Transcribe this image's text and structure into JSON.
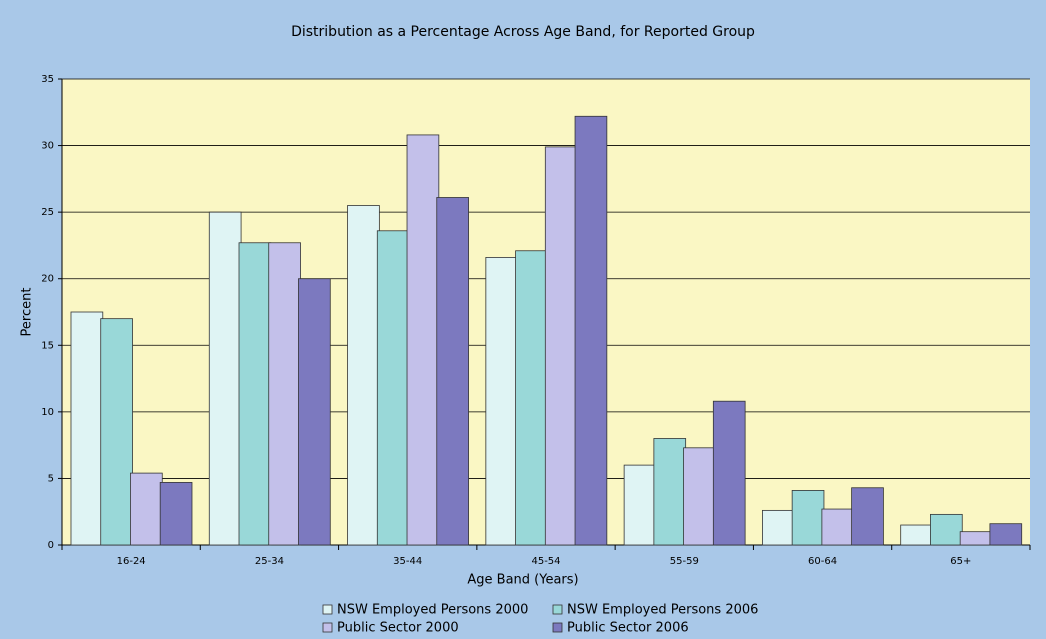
{
  "chart_data": {
    "type": "bar",
    "title": "Distribution as a Percentage Across Age Band, for Reported Group",
    "xlabel": "Age Band (Years)",
    "ylabel": "Percent",
    "categories": [
      "16-24",
      "25-34",
      "35-44",
      "45-54",
      "55-59",
      "60-64",
      "65+"
    ],
    "series": [
      {
        "name": "NSW Employed Persons 2000",
        "color": "#dff4f4",
        "values": [
          17.5,
          25.0,
          25.5,
          21.6,
          6.0,
          2.6,
          1.5
        ]
      },
      {
        "name": "NSW Employed Persons 2006",
        "color": "#99d8d8",
        "values": [
          17.0,
          22.7,
          23.6,
          22.1,
          8.0,
          4.1,
          2.3
        ]
      },
      {
        "name": "Public Sector 2000",
        "color": "#c3c0ea",
        "values": [
          5.4,
          22.7,
          30.8,
          29.9,
          7.3,
          2.7,
          1.0
        ]
      },
      {
        "name": "Public Sector 2006",
        "color": "#7c79bf",
        "values": [
          4.7,
          20.0,
          26.1,
          32.2,
          10.8,
          4.3,
          1.6
        ]
      }
    ],
    "ylim": [
      0,
      35
    ],
    "yticks": [
      0,
      5,
      10,
      15,
      20,
      25,
      30,
      35
    ],
    "grid": true
  }
}
